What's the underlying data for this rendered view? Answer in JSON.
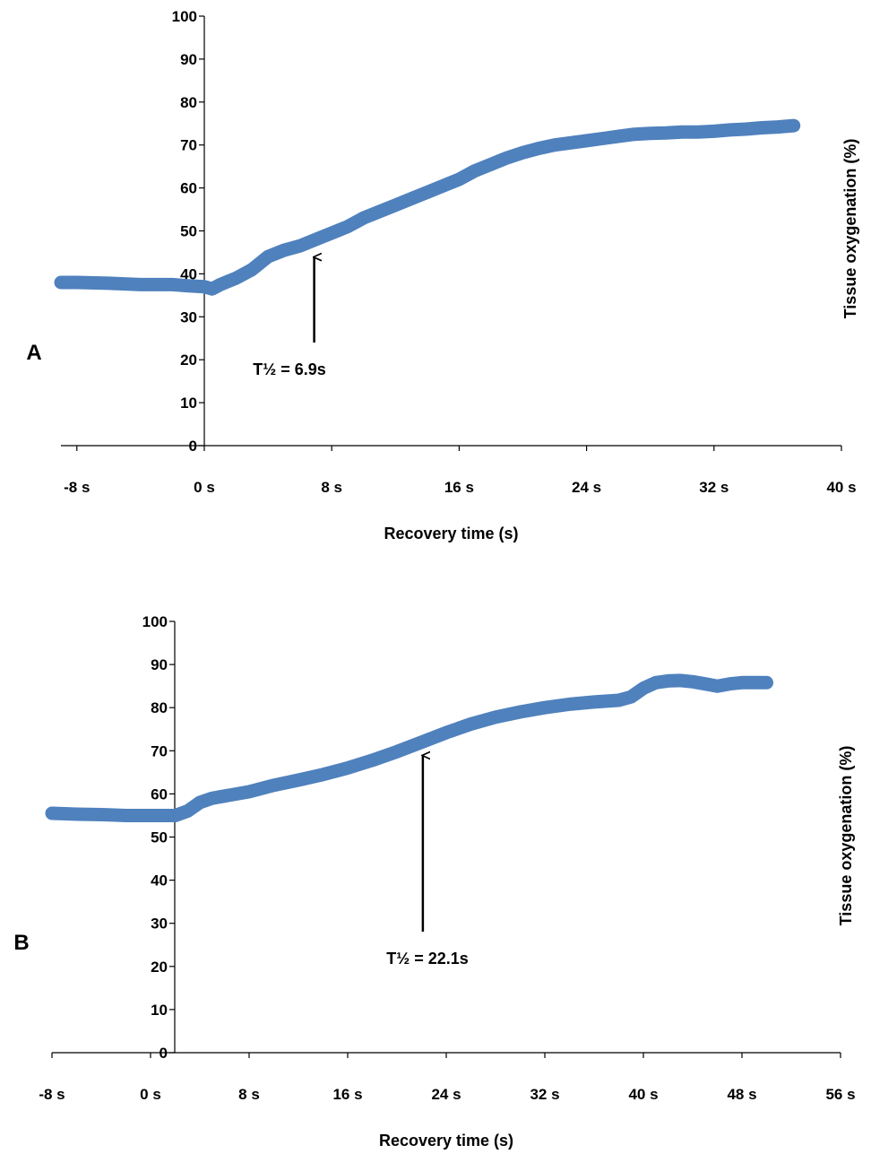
{
  "chart_data": [
    {
      "type": "line",
      "panel_label": "A",
      "xlabel": "Recovery time (s)",
      "ylabel": "Tissue oxygenation (%)",
      "xlim": [
        -9,
        40
      ],
      "ylim": [
        0,
        100
      ],
      "y_ticks": [
        0,
        10,
        20,
        30,
        40,
        50,
        60,
        70,
        80,
        90,
        100
      ],
      "x_ticks": [
        -8,
        0,
        8,
        16,
        24,
        32,
        40
      ],
      "x_tick_labels": [
        "-8 s",
        "0 s",
        "8 s",
        "16 s",
        "24 s",
        "32 s",
        "40 s"
      ],
      "grid": false,
      "series_color": "#4F81BD",
      "series": [
        {
          "x": [
            -9,
            -8,
            -6,
            -4,
            -2,
            -1,
            0,
            0.5,
            1,
            2,
            3,
            4,
            5,
            6,
            7,
            8,
            9,
            10,
            11,
            12,
            13,
            14,
            15,
            16,
            17,
            18,
            19,
            20,
            21,
            22,
            23,
            24,
            25,
            26,
            27,
            28,
            29,
            30,
            31,
            32,
            33,
            34,
            35,
            36,
            37
          ],
          "values": [
            38,
            38,
            37.8,
            37.5,
            37.5,
            37.2,
            37,
            36.5,
            37.5,
            39,
            41,
            44,
            45.5,
            46.5,
            48,
            49.5,
            51,
            53,
            54.5,
            56,
            57.5,
            59,
            60.5,
            62,
            64,
            65.5,
            67,
            68.2,
            69.2,
            70,
            70.5,
            71,
            71.5,
            72,
            72.5,
            72.7,
            72.8,
            73,
            73,
            73.2,
            73.5,
            73.7,
            74,
            74.2,
            74.5
          ]
        }
      ],
      "annotations": [
        {
          "text": "T½ = 6.9s",
          "points_to_x": 6.9,
          "points_to_y": 46
        }
      ]
    },
    {
      "type": "line",
      "panel_label": "B",
      "xlabel": "Recovery time (s)",
      "ylabel": "Tissue oxygenation (%)",
      "xlim": [
        -8,
        56
      ],
      "ylim": [
        0,
        100
      ],
      "y_ticks": [
        0,
        10,
        20,
        30,
        40,
        50,
        60,
        70,
        80,
        90,
        100
      ],
      "x_ticks": [
        -8,
        0,
        8,
        16,
        24,
        32,
        40,
        48,
        56
      ],
      "x_tick_labels": [
        "-8 s",
        "0 s",
        "8 s",
        "16 s",
        "24 s",
        "32 s",
        "40 s",
        "48 s",
        "56 s"
      ],
      "grid": false,
      "series_color": "#4F81BD",
      "series": [
        {
          "x": [
            -8,
            -6,
            -4,
            -2,
            0,
            1,
            2,
            3,
            4,
            5,
            6,
            8,
            10,
            12,
            14,
            16,
            18,
            20,
            22,
            24,
            26,
            28,
            30,
            32,
            34,
            36,
            38,
            39,
            40,
            41,
            42,
            43,
            44,
            45,
            46,
            47,
            48,
            50
          ],
          "values": [
            55.5,
            55.3,
            55.2,
            55,
            55,
            55,
            55,
            56,
            58,
            59,
            59.5,
            60.5,
            62,
            63.2,
            64.5,
            66,
            67.8,
            69.8,
            72,
            74.2,
            76.2,
            77.8,
            79,
            80,
            80.8,
            81.3,
            81.7,
            82.5,
            84.5,
            85.8,
            86.2,
            86.3,
            86,
            85.5,
            85,
            85.5,
            85.8,
            85.8
          ]
        }
      ],
      "annotations": [
        {
          "text": "T½ = 22.1s",
          "points_to_x": 22.1,
          "points_to_y": 71
        }
      ]
    }
  ]
}
